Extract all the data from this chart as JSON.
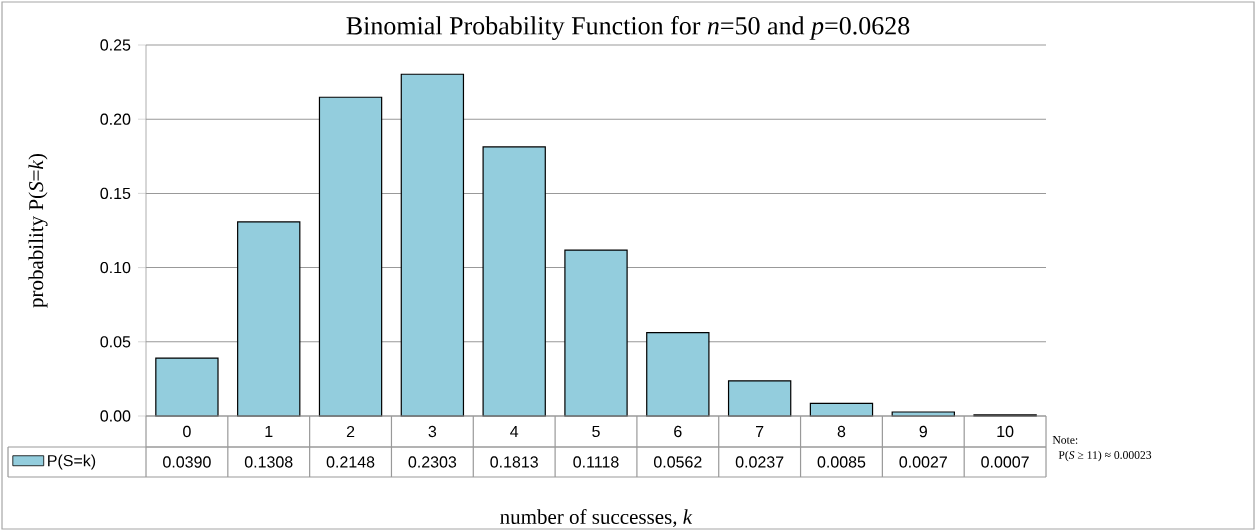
{
  "chart_data": {
    "type": "bar",
    "title": "Binomial Probability Function for *n*=50 and *p*=0.0628",
    "xlabel": "number of successes, *k*",
    "ylabel": "probability P(*S*=*k*)",
    "categories": [
      "0",
      "1",
      "2",
      "3",
      "4",
      "5",
      "6",
      "7",
      "8",
      "9",
      "10"
    ],
    "series": [
      {
        "name": "P(S=k)",
        "color": "#93cddd",
        "values": [
          0.039,
          0.1308,
          0.2148,
          0.2303,
          0.1813,
          0.1118,
          0.0562,
          0.0237,
          0.0085,
          0.0027,
          0.0007
        ],
        "value_labels": [
          "0.0390",
          "0.1308",
          "0.2148",
          "0.2303",
          "0.1813",
          "0.1118",
          "0.0562",
          "0.0237",
          "0.0085",
          "0.0027",
          "0.0007"
        ]
      }
    ],
    "ylim": [
      0,
      0.25
    ],
    "yticks": [
      {
        "value": 0,
        "label": "0.00"
      },
      {
        "value": 0.05,
        "label": "0.05"
      },
      {
        "value": 0.1,
        "label": "0.10"
      },
      {
        "value": 0.15,
        "label": "0.15"
      },
      {
        "value": 0.2,
        "label": "0.20"
      },
      {
        "value": 0.25,
        "label": "0.25"
      }
    ],
    "grid": "y",
    "annotations": [
      "Note:",
      "P(*S* ≥ 11) ≈ 0.00023"
    ]
  }
}
